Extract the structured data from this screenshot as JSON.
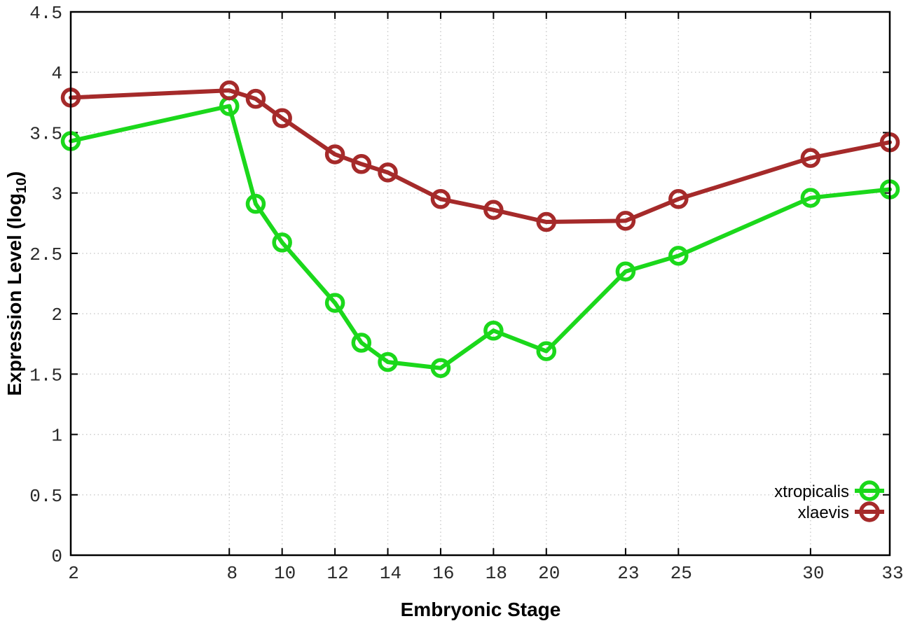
{
  "figure": {
    "background": "#ffffff",
    "y_axis": {
      "title_prefix": "Expression Level (log",
      "title_sub": "10",
      "title_suffix": ")",
      "tick_labels": [
        "0",
        "0.5",
        "1",
        "1.5",
        "2",
        "2.5",
        "3",
        "3.5",
        "4",
        "4.5"
      ],
      "tick_values": [
        0,
        0.5,
        1,
        1.5,
        2,
        2.5,
        3,
        3.5,
        4,
        4.5
      ]
    },
    "x_axis": {
      "title": "Embryonic Stage",
      "tick_labels": [
        "2",
        "8",
        "10",
        "12",
        "14",
        "16",
        "18",
        "20",
        "23",
        "25",
        "30",
        "33"
      ],
      "tick_values": [
        2,
        8,
        10,
        12,
        14,
        16,
        18,
        20,
        23,
        25,
        30,
        33
      ]
    },
    "legend": {
      "items": [
        {
          "label": "xtropicalis",
          "color": "#1bd81b"
        },
        {
          "label": "xlaevis",
          "color": "#a52a2a"
        }
      ]
    },
    "colors": {
      "grid": "#c9c9c9",
      "axis": "#000000"
    }
  },
  "chart_data": {
    "type": "line",
    "title": "",
    "xlabel": "Embryonic Stage",
    "ylabel": "Expression Level (log10)",
    "x": [
      2,
      8,
      9,
      10,
      12,
      13,
      14,
      16,
      18,
      20,
      23,
      25,
      30,
      33
    ],
    "series": [
      {
        "name": "xtropicalis",
        "color": "#1bd81b",
        "marker": "open-circle",
        "values": [
          3.43,
          3.72,
          2.91,
          2.59,
          2.09,
          1.76,
          1.6,
          1.55,
          1.86,
          1.69,
          2.35,
          2.48,
          2.96,
          3.03
        ]
      },
      {
        "name": "xlaevis",
        "color": "#a52a2a",
        "marker": "open-circle",
        "values": [
          3.79,
          3.85,
          3.78,
          3.62,
          3.32,
          3.24,
          3.17,
          2.95,
          2.86,
          2.76,
          2.77,
          2.95,
          3.29,
          3.42
        ]
      }
    ],
    "xlim": [
      2,
      33
    ],
    "ylim": [
      0,
      4.5
    ],
    "y_tick_step": 0.5,
    "grid": true,
    "grid_style": "dotted",
    "legend_position": "bottom-right"
  }
}
